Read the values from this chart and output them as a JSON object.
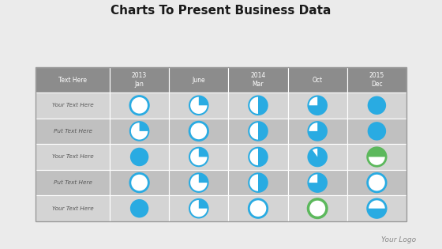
{
  "title": "Charts To Present Business Data",
  "bg_color": "#ebebeb",
  "header_bg": "#8c8c8c",
  "row_bg_even": "#d4d4d4",
  "row_bg_odd": "#c0c0c0",
  "blue": "#29ABE2",
  "green": "#5cb85c",
  "white": "#FFFFFF",
  "col_headers": [
    "Text Here",
    "2013\nJan",
    "June",
    "2014\nMar",
    "Oct",
    "2015\nDec"
  ],
  "row_labels": [
    "Your Text Here",
    "Put Text Here",
    "Your Text Here",
    "Put Text Here",
    "Your Text Here"
  ],
  "logo_text": "Your Logo",
  "pie_data": [
    [
      0,
      25,
      50,
      75,
      100
    ],
    [
      25,
      0,
      50,
      75,
      100
    ],
    [
      100,
      25,
      50,
      90,
      "green_top_half"
    ],
    [
      0,
      25,
      50,
      75,
      0
    ],
    [
      100,
      25,
      0,
      "green_ring",
      "blue_bottom_half"
    ]
  ]
}
